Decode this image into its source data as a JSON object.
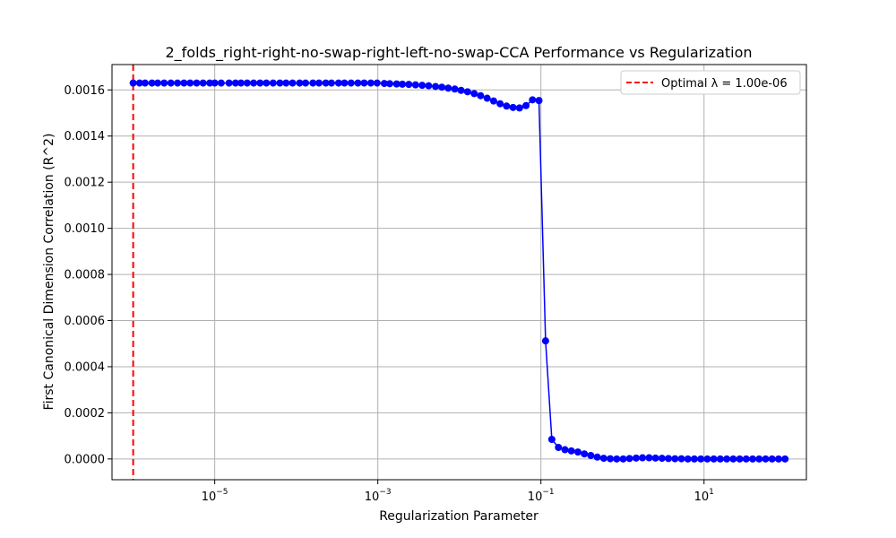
{
  "chart_data": {
    "type": "line",
    "title": "2_folds_right-right-no-swap-right-left-no-swap-CCA Performance vs Regularization",
    "xlabel": "Regularization Parameter",
    "ylabel": "First Canonical Dimension Correlation (R^2)",
    "xscale": "log",
    "xlim": [
      5.5e-07,
      180
    ],
    "ylim": [
      -9e-05,
      0.00171
    ],
    "grid": true,
    "legend_position": "top-right",
    "x_ticks": [
      {
        "value": 1e-05,
        "base": "10",
        "exp": "−5"
      },
      {
        "value": 0.001,
        "base": "10",
        "exp": "−3"
      },
      {
        "value": 0.1,
        "base": "10",
        "exp": "−1"
      },
      {
        "value": 10,
        "base": "10",
        "exp": "1"
      }
    ],
    "y_ticks": [
      {
        "value": 0.0,
        "label": "0.0000"
      },
      {
        "value": 0.0002,
        "label": "0.0002"
      },
      {
        "value": 0.0004,
        "label": "0.0004"
      },
      {
        "value": 0.0006,
        "label": "0.0006"
      },
      {
        "value": 0.0008,
        "label": "0.0008"
      },
      {
        "value": 0.001,
        "label": "0.0010"
      },
      {
        "value": 0.0012,
        "label": "0.0012"
      },
      {
        "value": 0.0014,
        "label": "0.0014"
      },
      {
        "value": 0.0016,
        "label": "0.0016"
      }
    ],
    "series": [
      {
        "color": "#0000ff",
        "marker": "circle",
        "x": [
          1e-06,
          1.2e-06,
          1.4e-06,
          1.7e-06,
          2e-06,
          2.4e-06,
          2.9e-06,
          3.5e-06,
          4.2e-06,
          5e-06,
          6e-06,
          7.2e-06,
          8.7e-06,
          1e-05,
          1.2e-05,
          1.5e-05,
          1.8e-05,
          2.1e-05,
          2.5e-05,
          3e-05,
          3.6e-05,
          4.3e-05,
          5.2e-05,
          6.3e-05,
          7.5e-05,
          9e-05,
          0.00011,
          0.00013,
          0.00016,
          0.00019,
          0.00023,
          0.00027,
          0.00033,
          0.00039,
          0.00047,
          0.00057,
          0.00068,
          0.00082,
          0.00098,
          0.0012,
          0.0014,
          0.0017,
          0.002,
          0.0024,
          0.0029,
          0.0035,
          0.0042,
          0.0051,
          0.0061,
          0.0073,
          0.0088,
          0.0105,
          0.0126,
          0.0152,
          0.0182,
          0.0219,
          0.0263,
          0.0316,
          0.0379,
          0.0455,
          0.0546,
          0.0656,
          0.0788,
          0.0946,
          0.114,
          0.136,
          0.164,
          0.197,
          0.236,
          0.284,
          0.341,
          0.409,
          0.491,
          0.589,
          0.708,
          0.85,
          1.02,
          1.22,
          1.47,
          1.76,
          2.12,
          2.54,
          3.05,
          3.66,
          4.4,
          5.28,
          6.34,
          7.61,
          9.14,
          10.97,
          13.17,
          15.82,
          18.99,
          22.8,
          27.38,
          32.87,
          39.47,
          47.39,
          56.9,
          68.32,
          82.03,
          98.48
        ],
        "y": [
          0.00163,
          0.00163,
          0.00163,
          0.00163,
          0.00163,
          0.00163,
          0.00163,
          0.00163,
          0.00163,
          0.00163,
          0.00163,
          0.00163,
          0.00163,
          0.00163,
          0.00163,
          0.00163,
          0.00163,
          0.00163,
          0.00163,
          0.00163,
          0.00163,
          0.00163,
          0.00163,
          0.00163,
          0.00163,
          0.00163,
          0.00163,
          0.00163,
          0.00163,
          0.00163,
          0.00163,
          0.00163,
          0.00163,
          0.00163,
          0.00163,
          0.00163,
          0.00163,
          0.00163,
          0.00163,
          0.001628,
          0.001627,
          0.001626,
          0.001625,
          0.001624,
          0.001622,
          0.00162,
          0.001618,
          0.001615,
          0.001612,
          0.001608,
          0.001604,
          0.001598,
          0.001592,
          0.001584,
          0.001575,
          0.001564,
          0.001552,
          0.00154,
          0.00153,
          0.001524,
          0.001522,
          0.001532,
          0.001557,
          0.001554,
          0.000512,
          8.5e-05,
          5e-05,
          4e-05,
          3.5e-05,
          3e-05,
          2.2e-05,
          1.5e-05,
          8e-06,
          3e-06,
          1e-06,
          0.0,
          0.0,
          2e-06,
          4e-06,
          5e-06,
          5e-06,
          4e-06,
          3e-06,
          2e-06,
          1e-06,
          1e-06,
          0.0,
          0.0,
          0.0,
          0.0,
          0.0,
          0.0,
          0.0,
          0.0,
          0.0,
          0.0,
          0.0,
          0.0,
          0.0,
          0.0,
          0.0,
          0.0
        ]
      }
    ],
    "vline": {
      "x": 1e-06,
      "color": "#ff0000",
      "style": "dashed",
      "label": "Optimal λ = 1.00e-06"
    }
  }
}
